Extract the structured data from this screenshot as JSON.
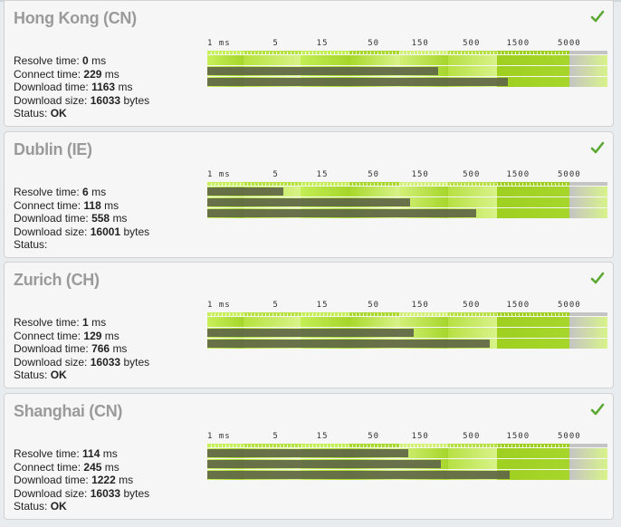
{
  "scale": {
    "ticks": [
      "1 ms",
      "5",
      "15",
      "50",
      "150",
      "500",
      "1500",
      "5000"
    ],
    "tick_values": [
      1,
      5,
      15,
      50,
      150,
      500,
      1500,
      5000
    ],
    "zone_colors": [
      "#c7ef5a",
      "#b6e23e",
      "#c4ee55",
      "#a8d82a",
      "#d2f078",
      "#b7e043",
      "#9fd020",
      "#c4c4c4"
    ]
  },
  "labels": {
    "resolve": "Resolve time:",
    "connect": "Connect time:",
    "download": "Download time:",
    "size": "Download size:",
    "status": "Status:",
    "ms": "ms",
    "bytes": "bytes"
  },
  "locations": [
    {
      "name": "Hong Kong (CN)",
      "resolve_ms": "0",
      "connect_ms": "229",
      "download_ms": "1163",
      "size_bytes": "16033",
      "status": "OK"
    },
    {
      "name": "Dublin (IE)",
      "resolve_ms": "6",
      "connect_ms": "118",
      "download_ms": "558",
      "size_bytes": "16001",
      "status": ""
    },
    {
      "name": "Zurich (CH)",
      "resolve_ms": "1",
      "connect_ms": "129",
      "download_ms": "766",
      "size_bytes": "16033",
      "status": "OK"
    },
    {
      "name": "Shanghai (CN)",
      "resolve_ms": "114",
      "connect_ms": "245",
      "download_ms": "1222",
      "size_bytes": "16033",
      "status": "OK"
    }
  ]
}
